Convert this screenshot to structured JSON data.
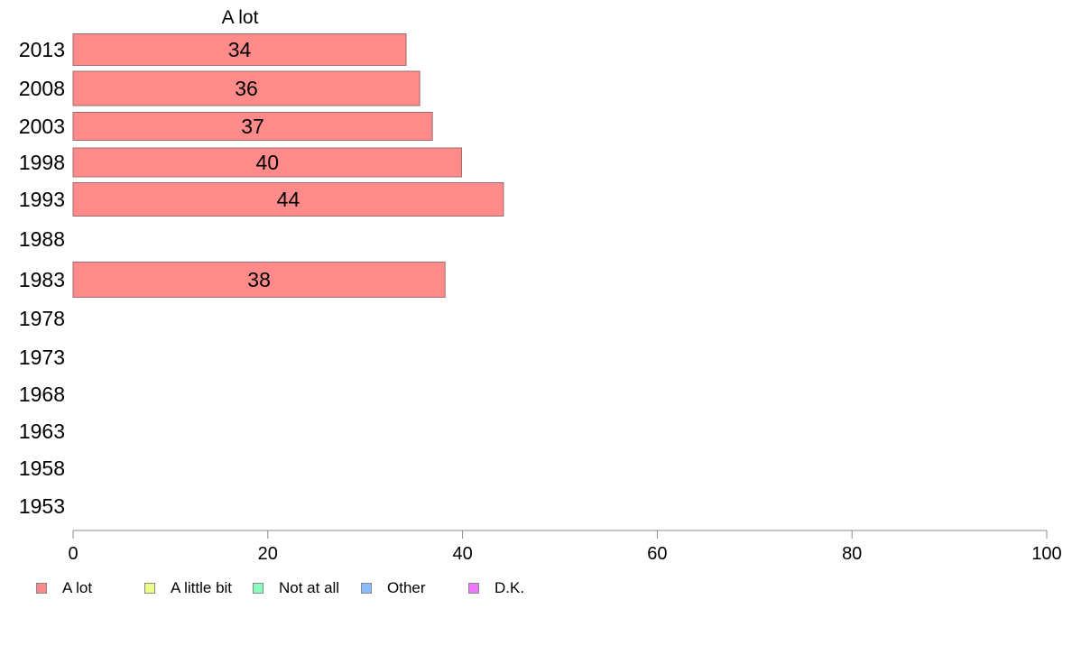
{
  "chart_data": {
    "type": "bar",
    "orientation": "horizontal",
    "panel_title": "A lot",
    "categories": [
      "2013",
      "2008",
      "2003",
      "1998",
      "1993",
      "1988",
      "1983",
      "1978",
      "1973",
      "1968",
      "1963",
      "1958",
      "1953"
    ],
    "series": [
      {
        "name": "A lot",
        "values": [
          34.2,
          35.6,
          36.9,
          39.9,
          44.2,
          null,
          38.2,
          null,
          null,
          null,
          null,
          null,
          null
        ]
      }
    ],
    "data_labels": [
      "34",
      "36",
      "37",
      "40",
      "44",
      "",
      "38",
      "",
      "",
      "",
      "",
      "",
      ""
    ],
    "xlim": [
      0,
      100
    ],
    "x_ticks": [
      "0",
      "20",
      "40",
      "60",
      "80",
      "100"
    ],
    "grid": false,
    "legend_position": "bottom-left",
    "legend": [
      {
        "label": "A lot",
        "color": "#ff8a8a"
      },
      {
        "label": "A little bit",
        "color": "#eeff88"
      },
      {
        "label": "Not at all",
        "color": "#88ffbb"
      },
      {
        "label": "Other",
        "color": "#88bbff"
      },
      {
        "label": "D.K.",
        "color": "#ee77ff"
      }
    ],
    "bar_color": "#ff8a8a",
    "bar_border": "#9a6b6b",
    "axis_color": "#888888"
  }
}
